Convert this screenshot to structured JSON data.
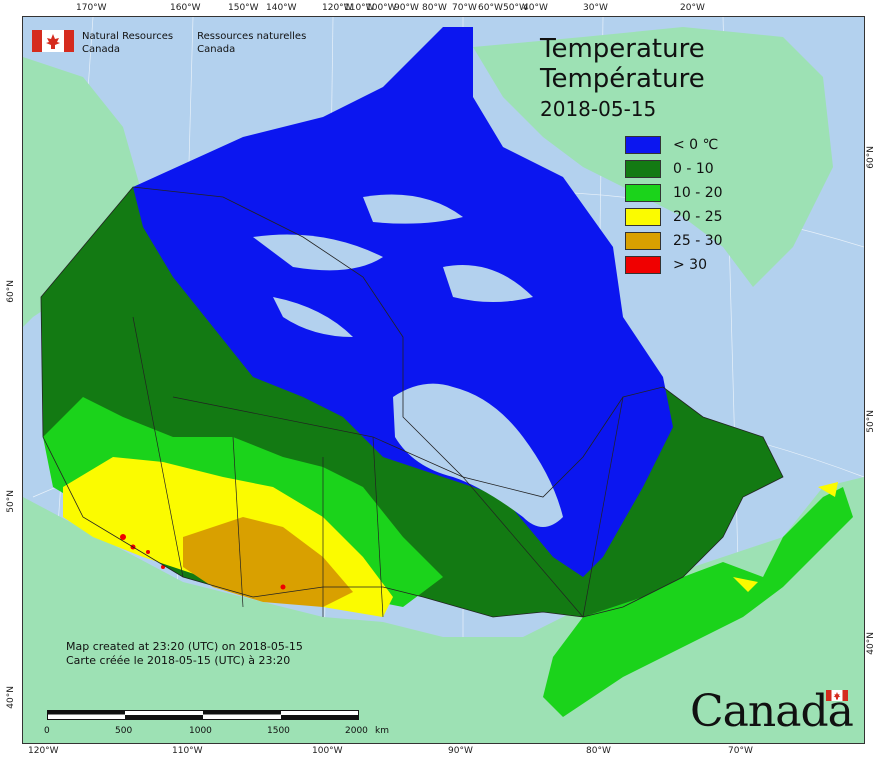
{
  "agency": {
    "name_en": "Natural Resources",
    "country_en": "Canada",
    "name_fr": "Ressources naturelles",
    "country_fr": "Canada"
  },
  "title": {
    "line1": "Temperature",
    "line2": "Température",
    "date": "2018-05-15"
  },
  "legend": [
    {
      "label": "< 0 ℃",
      "color": "#0b16f0"
    },
    {
      "label": "0 - 10",
      "color": "#137a13"
    },
    {
      "label": "10 - 20",
      "color": "#1bd31b"
    },
    {
      "label": "20 - 25",
      "color": "#fbfb00"
    },
    {
      "label": "25 - 30",
      "color": "#d9a000"
    },
    {
      "label": "> 30",
      "color": "#f00000"
    }
  ],
  "created": {
    "en": "Map created at 23:20 (UTC) on 2018-05-15",
    "fr": "Carte créée le 2018-05-15 (UTC) à 23:20"
  },
  "scale": {
    "labels": [
      "0",
      "500",
      "1000",
      "1500",
      "2000"
    ],
    "unit": "km"
  },
  "ticks": {
    "top": [
      "170°W",
      "160°W",
      "150°W",
      "140°W",
      "120°W",
      "110°W",
      "100°W",
      "90°W",
      "80°W",
      "70°W",
      "60°W",
      "50°W",
      "40°W",
      "30°W",
      "20°W"
    ],
    "bottom": [
      "120°W",
      "110°W",
      "100°W",
      "90°W",
      "80°W",
      "70°W"
    ],
    "left": [
      "60°N",
      "50°N",
      "40°N"
    ],
    "right": [
      "60°N",
      "50°N",
      "40°N"
    ]
  },
  "wordmark": "Canada",
  "colors": {
    "ocean": "#b3d1ee",
    "land_other": "#9de1b4",
    "water_inland": "#b3d1ee"
  }
}
